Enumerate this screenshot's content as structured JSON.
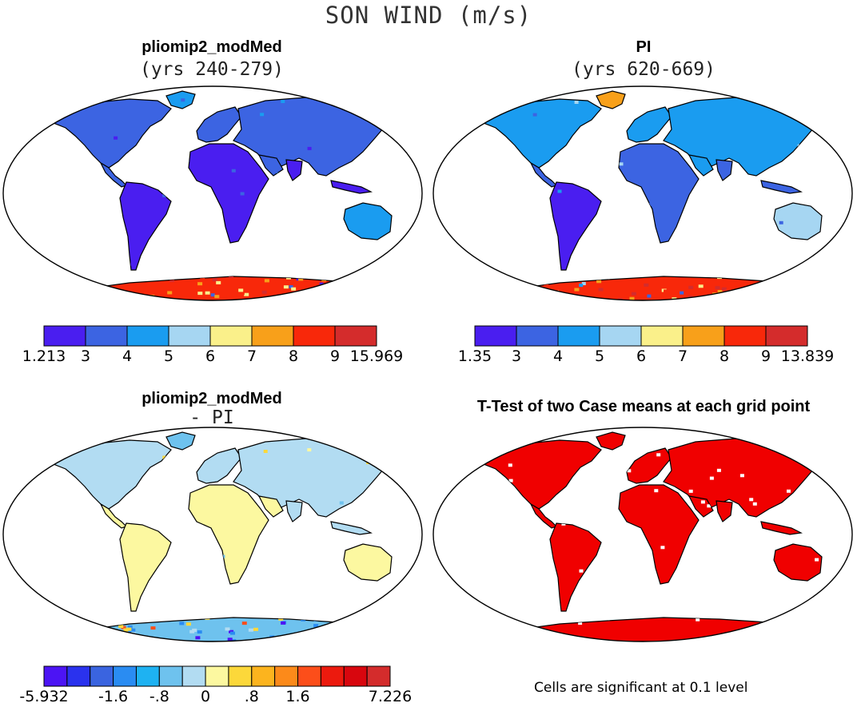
{
  "figure": {
    "title": "SON WIND (m/s)",
    "panels": [
      {
        "title": "pliomip2_modMed",
        "subtitle": "(yrs 240-279)",
        "land_scheme": "wind",
        "colorbar": {
          "colors": [
            "#4a1ef0",
            "#3c64e2",
            "#1a9cf0",
            "#a6d6f2",
            "#faf08a",
            "#f8a01a",
            "#f8280a",
            "#d42c2c"
          ],
          "labels": [
            "1.213",
            "3",
            "4",
            "5",
            "6",
            "7",
            "8",
            "9",
            "15.969"
          ]
        }
      },
      {
        "title": "PI",
        "subtitle": "(yrs 620-669)",
        "land_scheme": "wind",
        "colorbar": {
          "colors": [
            "#4a1ef0",
            "#3c64e2",
            "#1a9cf0",
            "#a6d6f2",
            "#faf08a",
            "#f8a01a",
            "#f8280a",
            "#d42c2c"
          ],
          "labels": [
            "1.35",
            "3",
            "4",
            "5",
            "6",
            "7",
            "8",
            "9",
            "13.839"
          ]
        }
      },
      {
        "title": "pliomip2_modMed",
        "subtitle": "- PI",
        "land_scheme": "difference",
        "colorbar": {
          "colors": [
            "#4c14f4",
            "#2a32ee",
            "#3a64e0",
            "#2a8cf2",
            "#1eb2f2",
            "#6ec2ee",
            "#b2dcf2",
            "#fcf8a0",
            "#fcd83a",
            "#fcb41e",
            "#fc8a1a",
            "#fc4e1a",
            "#ec1a0e",
            "#d8060e",
            "#d42c2c"
          ],
          "labels": [
            "-5.932",
            "-1.6",
            "-.8",
            "0",
            ".8",
            "1.6",
            "7.226"
          ]
        }
      },
      {
        "title": "T-Test of two Case means at each grid point",
        "land_scheme": "significance",
        "note": "Cells are significant at 0.1 level"
      }
    ],
    "colors": {
      "significant": "#f00000",
      "coast": "#000000"
    }
  }
}
